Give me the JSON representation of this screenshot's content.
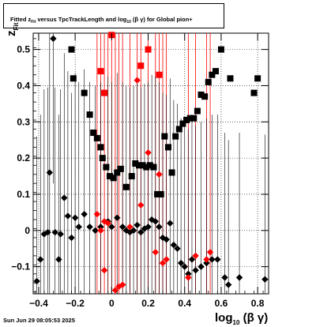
{
  "title": {
    "pre": "Fitted  z",
    "sub1": "Fit",
    "mid": "  versus TpcTrackLength and log",
    "sub2": "10",
    "post": "(β  γ) for Global pion+"
  },
  "ylabel": {
    "main": "z",
    "sub": "Fit"
  },
  "xlabel": {
    "main": "log",
    "sub": "10",
    "post": "(β γ)"
  },
  "timestamp": "Sun Jun 29 08:05:53 2025",
  "chart_data": {
    "type": "scatter",
    "xlim": [
      -0.43,
      0.86
    ],
    "ylim": [
      -0.175,
      0.545
    ],
    "xticks": [
      -0.4,
      -0.2,
      0,
      0.2,
      0.4,
      0.6,
      0.8
    ],
    "xtick_labels": [
      "−0.4",
      "−0.2",
      "0",
      "0.2",
      "0.4",
      "0.6",
      "0.8"
    ],
    "yticks": [
      -0.1,
      0,
      0.1,
      0.2,
      0.3,
      0.4,
      0.5
    ],
    "ytick_labels": [
      "−0.1",
      "0",
      "0.1",
      "0.2",
      "0.3",
      "0.4",
      "0.5"
    ],
    "grid": true,
    "colors": {
      "black": "#000000",
      "red": "#ff0000"
    },
    "series": [
      {
        "marker": "diamond",
        "color": "#000000",
        "points": [
          [
            -0.41,
            -0.14,
            0.4
          ],
          [
            -0.39,
            -0.08,
            0.4
          ],
          [
            -0.37,
            -0.01,
            0.4
          ],
          [
            -0.35,
            -0.005,
            0.4
          ],
          [
            -0.34,
            0.16,
            0.4
          ],
          [
            -0.32,
            0.53,
            0.4
          ],
          [
            -0.31,
            -0.005,
            0.4
          ],
          [
            -0.29,
            -0.08,
            0.4
          ],
          [
            -0.28,
            -0.01,
            0.4
          ],
          [
            -0.26,
            0.09,
            0.4
          ],
          [
            -0.24,
            0.04,
            0.4
          ],
          [
            -0.22,
            -0.02,
            0.4
          ],
          [
            -0.2,
            0.035,
            0.4
          ],
          [
            -0.18,
            0.01,
            0.4
          ],
          [
            -0.15,
            0.045,
            0.4
          ],
          [
            -0.12,
            0.01,
            0.4
          ],
          [
            -0.09,
            0.0,
            0.4
          ],
          [
            -0.06,
            0.01,
            0.4
          ],
          [
            -0.02,
            0.025,
            0.4
          ],
          [
            0.0,
            0.01,
            0.4
          ],
          [
            0.03,
            0.035,
            0.4
          ],
          [
            0.06,
            0.01,
            0.4
          ],
          [
            0.08,
            0.0,
            0.4
          ],
          [
            0.1,
            -0.005,
            0.4
          ],
          [
            0.12,
            0.0,
            0.4
          ],
          [
            0.14,
            0.015,
            0.4
          ],
          [
            0.16,
            -0.005,
            0.4
          ],
          [
            0.18,
            0.005,
            0.4
          ],
          [
            0.2,
            0.01,
            0.4
          ],
          [
            0.22,
            0.03,
            0.4
          ],
          [
            0.24,
            0.025,
            0.4
          ],
          [
            0.26,
            0.01,
            0.4
          ],
          [
            0.28,
            -0.02,
            0.4
          ],
          [
            0.3,
            -0.025,
            0.4
          ],
          [
            0.32,
            0.02,
            0.4
          ],
          [
            0.34,
            -0.04,
            0.4
          ],
          [
            0.36,
            -0.05,
            0.4
          ],
          [
            0.38,
            -0.09,
            0.4
          ],
          [
            0.4,
            -0.1,
            0.4
          ],
          [
            0.42,
            -0.12,
            0.4
          ],
          [
            0.44,
            -0.08,
            0.4
          ],
          [
            0.46,
            -0.11,
            0.4
          ],
          [
            0.49,
            -0.1,
            0.4
          ],
          [
            0.52,
            -0.09,
            0.4
          ],
          [
            0.55,
            -0.08,
            0.4
          ],
          [
            0.58,
            -0.08,
            0.4
          ],
          [
            0.62,
            -0.13,
            0.4
          ],
          [
            0.64,
            -0.15,
            0.4
          ],
          [
            0.7,
            -0.13,
            0.4
          ],
          [
            0.84,
            -0.135,
            0.4
          ]
        ]
      },
      {
        "marker": "diamond",
        "color": "#ff0000",
        "points": [
          [
            -0.08,
            0.045,
            0.4
          ],
          [
            -0.06,
            0.0,
            0.4
          ],
          [
            -0.04,
            0.025,
            0.4
          ],
          [
            -0.02,
            0.02,
            0.4
          ],
          [
            -0.04,
            -0.11,
            0.4
          ],
          [
            0.02,
            -0.165,
            0.4
          ],
          [
            0.04,
            -0.155,
            0.4
          ],
          [
            0.06,
            -0.15,
            0.4
          ],
          [
            0.1,
            0.01,
            0.4
          ],
          [
            0.14,
            0.415,
            0.4
          ],
          [
            0.16,
            0.07,
            0.4
          ],
          [
            0.2,
            0.215,
            0.4
          ],
          [
            0.24,
            -0.06,
            0.4
          ],
          [
            0.26,
            0.155,
            0.4
          ],
          [
            0.28,
            -0.09,
            0.4
          ],
          [
            0.3,
            -0.08,
            0.4
          ],
          [
            0.42,
            -0.13,
            0.4
          ],
          [
            0.46,
            -0.07,
            0.4
          ],
          [
            0.52,
            -0.08,
            0.4
          ],
          [
            0.54,
            -0.06,
            0.4
          ]
        ]
      },
      {
        "marker": "square",
        "color": "#000000",
        "points": [
          [
            -0.22,
            0.5
          ],
          [
            -0.21,
            0.42
          ],
          [
            -0.15,
            0.38
          ],
          [
            -0.12,
            0.32
          ],
          [
            -0.1,
            0.27
          ],
          [
            -0.08,
            0.255
          ],
          [
            -0.06,
            0.23
          ],
          [
            -0.05,
            0.2
          ],
          [
            -0.03,
            0.175
          ],
          [
            -0.01,
            0.15
          ],
          [
            0.01,
            0.145
          ],
          [
            0.03,
            0.16
          ],
          [
            0.05,
            0.17
          ],
          [
            0.08,
            0.12
          ],
          [
            0.11,
            0.15
          ],
          [
            0.13,
            0.185
          ],
          [
            0.15,
            0.18
          ],
          [
            0.17,
            0.18
          ],
          [
            0.19,
            0.175
          ],
          [
            0.21,
            0.18
          ],
          [
            0.23,
            0.175
          ],
          [
            0.25,
            0.1
          ],
          [
            0.27,
            0.1
          ],
          [
            0.29,
            0.26
          ],
          [
            0.31,
            0.23
          ],
          [
            0.33,
            0.16
          ],
          [
            0.35,
            0.26
          ],
          [
            0.37,
            0.28
          ],
          [
            0.39,
            0.295
          ],
          [
            0.41,
            0.305
          ],
          [
            0.43,
            0.31
          ],
          [
            0.45,
            0.31
          ],
          [
            0.47,
            0.33
          ],
          [
            0.49,
            0.375
          ],
          [
            0.51,
            0.37
          ],
          [
            0.53,
            0.41
          ],
          [
            0.55,
            0.43
          ],
          [
            0.57,
            0.44
          ],
          [
            0.6,
            0.5
          ],
          [
            0.65,
            0.42
          ],
          [
            0.78,
            0.38
          ],
          [
            0.8,
            0.42
          ]
        ]
      },
      {
        "marker": "square",
        "color": "#ff0000",
        "points": [
          [
            -0.06,
            0.44
          ],
          [
            -0.04,
            0.38
          ],
          [
            0.0,
            0.54
          ],
          [
            0.16,
            0.455
          ],
          [
            0.2,
            0.5
          ],
          [
            0.26,
            0.43
          ]
        ]
      }
    ],
    "red_vertical_lines": [
      -0.08,
      -0.06,
      -0.04,
      -0.02,
      0.0,
      0.02,
      0.04,
      0.06,
      0.1,
      0.14,
      0.16,
      0.2,
      0.24,
      0.26,
      0.28,
      0.3,
      0.42,
      0.46,
      0.52,
      0.54
    ]
  }
}
